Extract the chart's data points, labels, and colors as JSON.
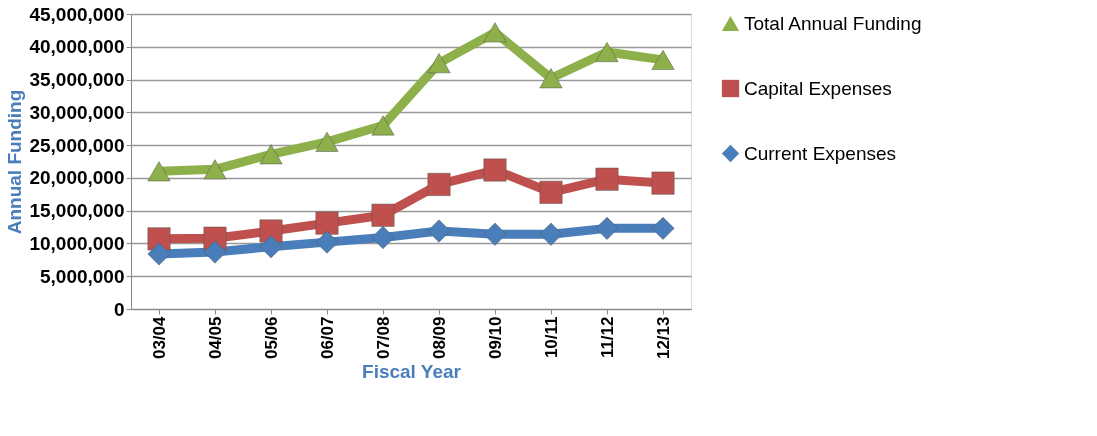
{
  "chart_data": {
    "type": "line",
    "xlabel": "Fiscal Year",
    "ylabel": "Annual Funding",
    "categories": [
      "03/04",
      "04/05",
      "05/06",
      "06/07",
      "07/08",
      "08/09",
      "09/10",
      "10/11",
      "11/12",
      "12/13"
    ],
    "series": [
      {
        "name": "Total Annual  Funding",
        "color": "#8db04a",
        "marker": "triangle",
        "values": [
          21000000,
          21300000,
          23600000,
          25500000,
          28000000,
          37500000,
          42200000,
          35200000,
          39200000,
          38000000
        ]
      },
      {
        "name": "Capital Expenses",
        "color": "#c0504d",
        "marker": "square",
        "values": [
          10700000,
          10800000,
          11900000,
          13100000,
          14300000,
          19000000,
          21200000,
          17800000,
          19800000,
          19200000
        ]
      },
      {
        "name": "Current Expenses",
        "color": "#4a7ebb",
        "marker": "diamond",
        "values": [
          8400000,
          8700000,
          9500000,
          10200000,
          10900000,
          11900000,
          11400000,
          11400000,
          12300000,
          12300000
        ]
      }
    ],
    "ylim": [
      0,
      45000000
    ],
    "yticks": [
      0,
      {
        "value": 5000000,
        "label": "5,000,000"
      },
      {
        "value": 10000000,
        "label": "10,000,000"
      },
      {
        "value": 15000000,
        "label": "15,000,000"
      },
      {
        "value": 20000000,
        "label": "20,000,000"
      },
      {
        "value": 25000000,
        "label": "25,000,000"
      },
      {
        "value": 30000000,
        "label": "30,000,000"
      },
      {
        "value": 35000000,
        "label": "35,000,000"
      },
      {
        "value": 40000000,
        "label": "40,000,000"
      },
      {
        "value": 45000000,
        "label": "45,000,000"
      }
    ],
    "grid": "y",
    "legend": "right"
  }
}
